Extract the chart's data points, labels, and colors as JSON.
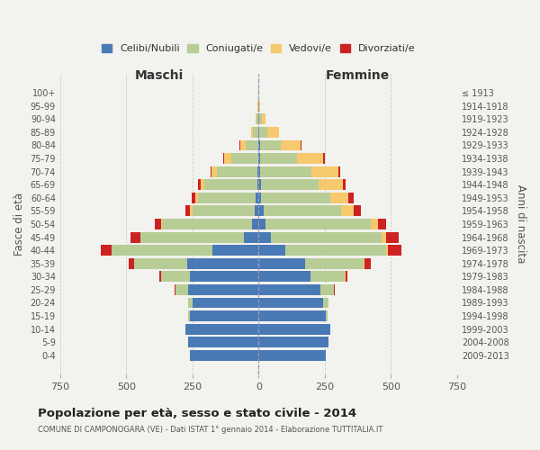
{
  "age_groups": [
    "0-4",
    "5-9",
    "10-14",
    "15-19",
    "20-24",
    "25-29",
    "30-34",
    "35-39",
    "40-44",
    "45-49",
    "50-54",
    "55-59",
    "60-64",
    "65-69",
    "70-74",
    "75-79",
    "80-84",
    "85-89",
    "90-94",
    "95-99",
    "100+"
  ],
  "birth_years": [
    "2009-2013",
    "2004-2008",
    "1999-2003",
    "1994-1998",
    "1989-1993",
    "1984-1988",
    "1979-1983",
    "1974-1978",
    "1969-1973",
    "1964-1968",
    "1959-1963",
    "1954-1958",
    "1949-1953",
    "1944-1948",
    "1939-1943",
    "1934-1938",
    "1929-1933",
    "1924-1928",
    "1919-1923",
    "1914-1918",
    "≤ 1913"
  ],
  "male": {
    "celibe": [
      260,
      265,
      275,
      260,
      250,
      265,
      260,
      270,
      175,
      55,
      25,
      15,
      10,
      5,
      3,
      2,
      0,
      0,
      0,
      0,
      0
    ],
    "coniugato": [
      0,
      0,
      2,
      5,
      15,
      50,
      110,
      200,
      380,
      390,
      340,
      235,
      220,
      200,
      155,
      100,
      50,
      20,
      8,
      2,
      0
    ],
    "vedovo": [
      0,
      0,
      0,
      0,
      0,
      0,
      0,
      1,
      2,
      3,
      5,
      8,
      10,
      15,
      20,
      30,
      20,
      8,
      3,
      1,
      0
    ],
    "divorziato": [
      0,
      0,
      0,
      0,
      0,
      2,
      5,
      20,
      40,
      35,
      22,
      20,
      12,
      8,
      5,
      3,
      2,
      1,
      0,
      0,
      0
    ]
  },
  "female": {
    "nubile": [
      255,
      265,
      270,
      255,
      245,
      235,
      195,
      175,
      100,
      45,
      25,
      18,
      10,
      8,
      5,
      5,
      4,
      2,
      1,
      0,
      0
    ],
    "coniugata": [
      0,
      0,
      2,
      5,
      18,
      50,
      130,
      220,
      380,
      420,
      400,
      295,
      260,
      220,
      195,
      140,
      80,
      30,
      10,
      3,
      1
    ],
    "vedova": [
      0,
      0,
      0,
      0,
      0,
      1,
      2,
      5,
      8,
      15,
      25,
      45,
      70,
      90,
      100,
      100,
      75,
      45,
      15,
      3,
      0
    ],
    "divorziata": [
      0,
      0,
      0,
      0,
      1,
      3,
      8,
      25,
      50,
      50,
      30,
      30,
      18,
      12,
      8,
      5,
      3,
      1,
      0,
      0,
      0
    ]
  },
  "colors": {
    "celibe": "#4a7ab5",
    "coniugato": "#b8cc96",
    "vedovo": "#f6c96e",
    "divorziato": "#cc2222"
  },
  "xlim": 750,
  "title": "Popolazione per età, sesso e stato civile - 2014",
  "subtitle": "COMUNE DI CAMPONOGARA (VE) - Dati ISTAT 1° gennaio 2014 - Elaborazione TUTTITALIA.IT",
  "ylabel_left": "Fasce di età",
  "ylabel_right": "Anni di nascita",
  "xlabel_left": "Maschi",
  "xlabel_right": "Femmine",
  "bg_color": "#f2f2ee",
  "bar_height": 0.82
}
